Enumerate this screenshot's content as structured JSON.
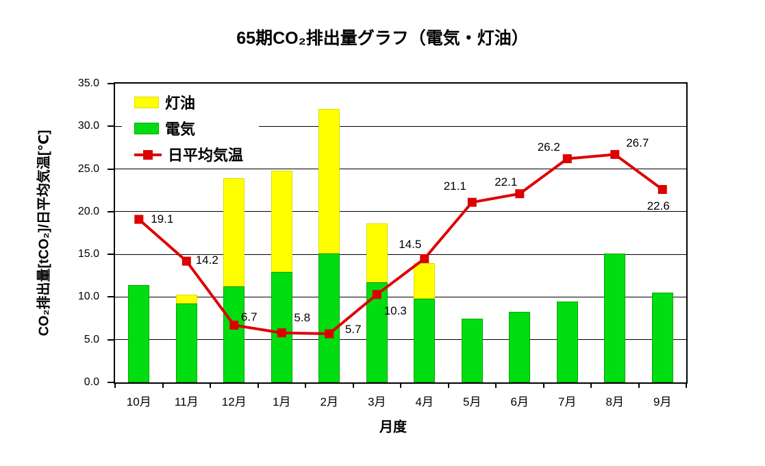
{
  "chart_data": {
    "type": "combo-stacked-bar-line",
    "title": "65期CO₂排出量グラフ（電気・灯油）",
    "xlabel": "月度",
    "ylabel": "CO₂排出量[tCO₂]/日平均気温[℃]",
    "ylim": [
      0,
      35
    ],
    "ytick_step": 5,
    "ytick_decimals": 1,
    "grid": "horizontal-on",
    "legend_position": "top-left-inside",
    "plot_background": "#ffffff",
    "axis_color": "#000000",
    "categories": [
      "10月",
      "11月",
      "12月",
      "1月",
      "2月",
      "3月",
      "4月",
      "5月",
      "6月",
      "7月",
      "8月",
      "9月"
    ],
    "series": [
      {
        "name": "電気",
        "id": "electricity",
        "type": "bar",
        "stack": "co2",
        "color": "#00DD11",
        "border_color": "#00A500",
        "values": [
          11.4,
          9.2,
          11.2,
          12.9,
          15.1,
          11.7,
          9.8,
          7.5,
          8.3,
          9.5,
          15.1,
          10.5
        ]
      },
      {
        "name": "灯油",
        "id": "kerosene",
        "type": "bar",
        "stack": "co2",
        "color": "#FFFF00",
        "border_color": "#DCDC00",
        "values": [
          0,
          1.1,
          12.7,
          11.9,
          16.9,
          6.9,
          4.2,
          0,
          0,
          0,
          0,
          0
        ]
      },
      {
        "name": "日平均気温",
        "id": "temperature",
        "type": "line",
        "color": "#DD0000",
        "marker": "square",
        "values": [
          19.1,
          14.2,
          6.7,
          5.8,
          5.7,
          10.3,
          14.5,
          21.1,
          22.1,
          26.2,
          26.7,
          22.6
        ],
        "labels_visible": true,
        "label_offsets": [
          [
            34,
            0
          ],
          [
            30,
            -1
          ],
          [
            22,
            -12
          ],
          [
            30,
            -22
          ],
          [
            35,
            -6
          ],
          [
            27,
            24
          ],
          [
            -21,
            -20
          ],
          [
            -25,
            -23
          ],
          [
            -20,
            -17
          ],
          [
            -27,
            -17
          ],
          [
            33,
            -16
          ],
          [
            -6,
            25
          ]
        ]
      }
    ],
    "legend": [
      {
        "label": "灯油",
        "key": "box",
        "color": "#FFFF00",
        "border_color": "#DCDC00"
      },
      {
        "label": "電気",
        "key": "box",
        "color": "#00DD11",
        "border_color": "#00A500"
      },
      {
        "label": "日平均気温",
        "key": "line-marker",
        "color": "#DD0000"
      }
    ]
  }
}
